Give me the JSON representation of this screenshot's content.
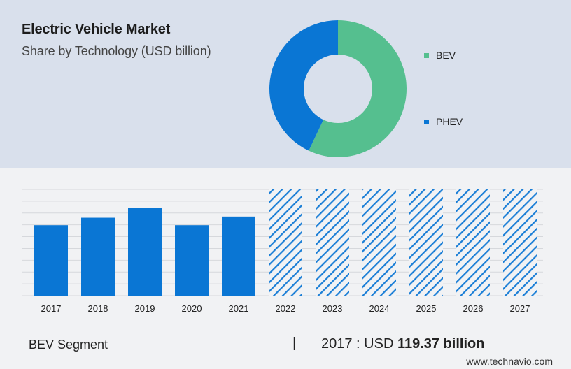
{
  "header": {
    "title": "Electric Vehicle Market",
    "subtitle": "Share by Technology (USD billion)"
  },
  "chart_data": [
    {
      "type": "pie",
      "variant": "donut",
      "categories": [
        "BEV",
        "PHEV"
      ],
      "values": [
        57,
        43
      ],
      "colors": [
        "#55bf8f",
        "#0a76d4"
      ],
      "legend": "right"
    },
    {
      "type": "bar",
      "categories": [
        "2017",
        "2018",
        "2019",
        "2020",
        "2021",
        "2022",
        "2023",
        "2024",
        "2025",
        "2026",
        "2027"
      ],
      "values": [
        119.37,
        132,
        149,
        119.37,
        134,
        null,
        null,
        null,
        null,
        null,
        null
      ],
      "forecast_categories": [
        "2022",
        "2023",
        "2024",
        "2025",
        "2026",
        "2027"
      ],
      "ylim": [
        0,
        180
      ],
      "grid": true,
      "colors": {
        "actual": "#0a76d4",
        "forecast": "#1a7ed6"
      }
    }
  ],
  "footer": {
    "segment_label": "BEV Segment",
    "separator": "|",
    "value_prefix": "2017 : USD",
    "value_bold": "119.37 billion",
    "source": "www.technavio.com"
  }
}
